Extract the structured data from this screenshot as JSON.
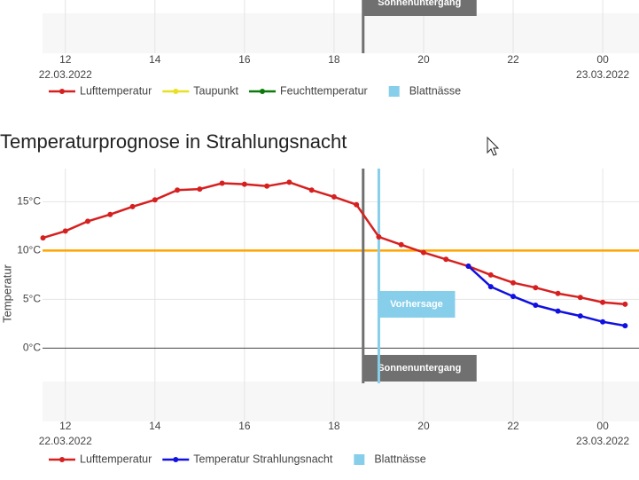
{
  "chart_data": [
    {
      "type": "line",
      "xlim": [
        11.49,
        24.81
      ],
      "xticks": [
        {
          "value": 12,
          "label": "12"
        },
        14,
        16,
        18,
        20,
        22,
        {
          "value": 24,
          "label": "00"
        }
      ],
      "date_labels": [
        {
          "value": 12,
          "label": "22.03.2022"
        },
        {
          "value": 24,
          "label": "23.03.2022"
        }
      ],
      "legend": [
        {
          "name": "Lufttemperatur",
          "color": "#d62020",
          "symbol": "line"
        },
        {
          "name": "Taupunkt",
          "color": "#e8e020",
          "symbol": "line"
        },
        {
          "name": "Feuchttemperatur",
          "color": "#0a7a0a",
          "symbol": "line"
        },
        {
          "name": "Blattnässe",
          "color": "#87ceeb",
          "symbol": "square"
        }
      ],
      "vlines": [
        {
          "value": 18.65,
          "label": "Sonnenuntergang",
          "color": "#707070"
        }
      ]
    },
    {
      "type": "line",
      "title": "Temperaturprognose in Strahlungsnacht",
      "y_label": "Temperatur",
      "x": [
        11.5,
        12,
        12.5,
        13,
        13.5,
        14,
        14.5,
        15,
        15.5,
        16,
        16.5,
        17,
        17.5,
        18,
        18.5,
        19,
        19.5,
        20,
        20.5,
        21,
        21.5,
        22,
        22.5,
        23,
        23.5,
        24,
        24.5
      ],
      "series": [
        {
          "name": "Lufttemperatur",
          "color": "#d62020",
          "values": [
            11.3,
            12.0,
            13.0,
            13.7,
            14.5,
            15.2,
            16.2,
            16.3,
            16.9,
            16.8,
            16.6,
            17.0,
            16.2,
            15.5,
            14.7,
            11.4,
            10.6,
            9.8,
            9.1,
            8.4,
            7.5,
            6.7,
            6.2,
            5.6,
            5.2,
            4.7,
            4.5
          ]
        },
        {
          "name": "Temperatur Strahlungsnacht",
          "color": "#1010e0",
          "values": [
            null,
            null,
            null,
            null,
            null,
            null,
            null,
            null,
            null,
            null,
            null,
            null,
            null,
            null,
            null,
            null,
            null,
            null,
            null,
            8.4,
            6.3,
            5.3,
            4.4,
            3.8,
            3.3,
            2.7,
            2.3
          ]
        }
      ],
      "extra_legend": [
        {
          "name": "Blattnässe",
          "color": "#87ceeb"
        }
      ],
      "xlim": [
        11.49,
        24.81
      ],
      "ylim": [
        -3.6,
        18.4
      ],
      "xticks": [
        {
          "value": 12,
          "label": "12"
        },
        14,
        16,
        18,
        20,
        22,
        {
          "value": 24,
          "label": "00"
        }
      ],
      "yticks": [
        {
          "value": 0,
          "label": "0°C"
        },
        {
          "value": 5,
          "label": "5°C"
        },
        {
          "value": 10,
          "label": "10°C"
        },
        {
          "value": 15,
          "label": "15°C"
        }
      ],
      "date_labels": [
        {
          "value": 12,
          "label": "22.03.2022"
        },
        {
          "value": 24,
          "label": "23.03.2022"
        }
      ],
      "reference_lines": [
        {
          "value": 10,
          "color": "#ffa500"
        }
      ],
      "vlines": [
        {
          "value": 18.65,
          "label": "Sonnenuntergang",
          "color": "#707070"
        },
        {
          "value": 19.0,
          "label": "Vorhersage",
          "color": "#87ceeb"
        }
      ],
      "grid": true
    }
  ]
}
